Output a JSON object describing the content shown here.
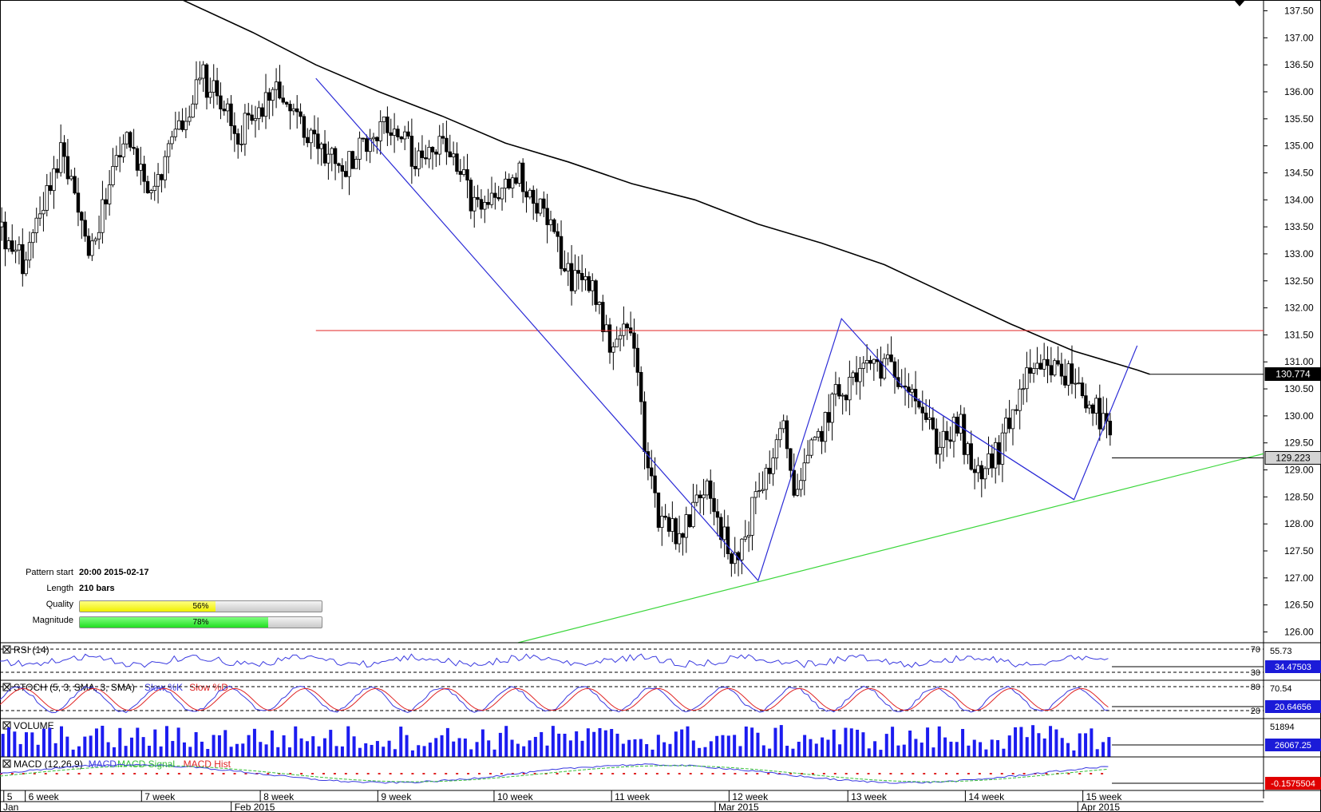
{
  "chart_data": {
    "type": "candlestick",
    "y_ticks": [
      "137.50",
      "137.00",
      "136.50",
      "136.00",
      "135.50",
      "135.00",
      "134.50",
      "134.00",
      "133.50",
      "133.00",
      "132.50",
      "132.00",
      "131.50",
      "131.00",
      "130.50",
      "130.00",
      "129.50",
      "129.00",
      "128.50",
      "128.00",
      "127.50",
      "127.00",
      "126.50",
      "126.00"
    ],
    "ylim": [
      125.8,
      137.7
    ],
    "week_labels": [
      "5",
      "6 week",
      "7 week",
      "8 week",
      "9 week",
      "10 week",
      "11 week",
      "12 week",
      "13 week",
      "14 week",
      "15 week"
    ],
    "month_labels": [
      "Jan",
      "Feb 2015",
      "Mar 2015",
      "Apr 2015"
    ],
    "price_tags": [
      {
        "value": "130.774",
        "style": "dark"
      },
      {
        "value": "129.223",
        "style": "light"
      }
    ],
    "moving_average": [
      [
        0.14,
        137.75
      ],
      [
        0.2,
        137.1
      ],
      [
        0.25,
        136.5
      ],
      [
        0.3,
        136.0
      ],
      [
        0.35,
        135.55
      ],
      [
        0.4,
        135.05
      ],
      [
        0.45,
        134.7
      ],
      [
        0.5,
        134.3
      ],
      [
        0.55,
        134.0
      ],
      [
        0.6,
        133.55
      ],
      [
        0.65,
        133.2
      ],
      [
        0.7,
        132.8
      ],
      [
        0.75,
        132.25
      ],
      [
        0.8,
        131.7
      ],
      [
        0.85,
        131.2
      ],
      [
        0.9,
        130.85
      ],
      [
        0.91,
        130.77
      ]
    ],
    "candles_seed": 20150217,
    "price_path": [
      [
        0,
        133.5
      ],
      [
        0.02,
        132.8
      ],
      [
        0.05,
        135.0
      ],
      [
        0.07,
        133.0
      ],
      [
        0.1,
        135.1
      ],
      [
        0.12,
        134.0
      ],
      [
        0.16,
        136.3
      ],
      [
        0.19,
        135.2
      ],
      [
        0.22,
        136.2
      ],
      [
        0.24,
        135.3
      ],
      [
        0.27,
        134.5
      ],
      [
        0.3,
        135.4
      ],
      [
        0.33,
        134.8
      ],
      [
        0.35,
        135.2
      ],
      [
        0.38,
        133.7
      ],
      [
        0.41,
        134.5
      ],
      [
        0.43,
        133.8
      ],
      [
        0.45,
        132.6
      ],
      [
        0.47,
        132.4
      ],
      [
        0.48,
        131.4
      ],
      [
        0.5,
        131.6
      ],
      [
        0.51,
        129.6
      ],
      [
        0.52,
        128.2
      ],
      [
        0.54,
        127.8
      ],
      [
        0.56,
        128.9
      ],
      [
        0.58,
        127.1
      ],
      [
        0.6,
        128.6
      ],
      [
        0.62,
        129.7
      ],
      [
        0.63,
        128.6
      ],
      [
        0.66,
        130.3
      ],
      [
        0.69,
        131.0
      ],
      [
        0.72,
        130.7
      ],
      [
        0.74,
        129.5
      ],
      [
        0.76,
        129.8
      ],
      [
        0.77,
        128.8
      ],
      [
        0.79,
        129.3
      ],
      [
        0.81,
        130.6
      ],
      [
        0.83,
        130.9
      ],
      [
        0.85,
        130.7
      ],
      [
        0.87,
        130.0
      ],
      [
        0.88,
        129.5
      ]
    ],
    "pattern_lines": [
      {
        "color": "#2b2bd6",
        "points": [
          [
            0.25,
            136.25
          ],
          [
            0.6,
            126.95
          ],
          [
            0.666,
            131.8
          ],
          [
            0.72,
            130.4
          ],
          [
            0.85,
            128.45
          ],
          [
            0.9,
            131.3
          ]
        ]
      },
      {
        "color": "#2b2bd6",
        "points": [
          [
            0.72,
            130.4
          ],
          [
            0.85,
            128.45
          ]
        ]
      }
    ],
    "resistance": {
      "color": "#e02424",
      "x_start": 0.25,
      "value": 131.58
    },
    "support": {
      "color": "#3cd63c",
      "points": [
        [
          0.41,
          125.8
        ],
        [
          1.0,
          129.3
        ]
      ]
    },
    "indicators": [
      {
        "name": "RSI",
        "label": "RSI (14)",
        "levels": [
          "70",
          "30"
        ],
        "value_tags": [
          "55.73"
        ],
        "current": "34.47503"
      },
      {
        "name": "STOCH",
        "label": "STOCH (5, 3, SMA, 3, SMA)",
        "legend": [
          {
            "text": "Slow %K",
            "color": "#3a3ae0"
          },
          {
            "text": "Slow %D",
            "color": "#e02424"
          }
        ],
        "levels": [
          "80",
          "20"
        ],
        "value_tags": [
          "70.54"
        ],
        "current": "20.64656"
      },
      {
        "name": "VOLUME",
        "label": "VOLUME",
        "value_tags": [
          "51894"
        ],
        "current": "26067.25"
      },
      {
        "name": "MACD",
        "label": "MACD (12,26,9)",
        "legend": [
          {
            "text": "MACD",
            "color": "#3a3ae0"
          },
          {
            "text": "MACD Signal",
            "color": "#38c038"
          },
          {
            "text": "MACD Hist",
            "color": "#e02424"
          }
        ],
        "current": "-0.1575504"
      }
    ]
  },
  "pattern_info": {
    "start_label": "Pattern start",
    "start_value": "20:00 2015-02-17",
    "length_label": "Length",
    "length_value": "210 bars",
    "quality_label": "Quality",
    "quality_value": "56%",
    "quality_fraction": 0.56,
    "magnitude_label": "Magnitude",
    "magnitude_value": "78%",
    "magnitude_fraction": 0.78
  }
}
